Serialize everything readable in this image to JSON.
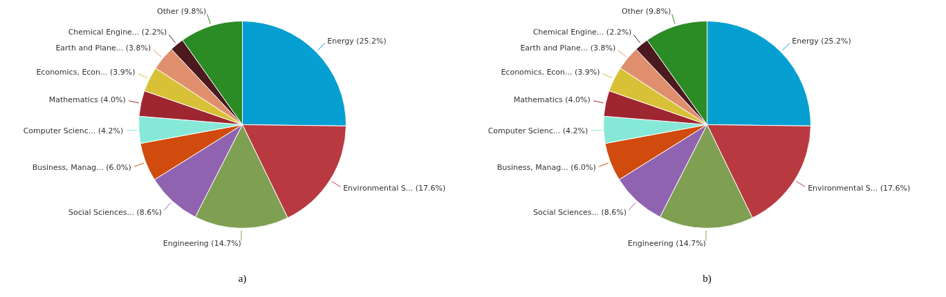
{
  "chart_data": [
    {
      "type": "pie",
      "title": "a)",
      "categories": [
        "Energy",
        "Environmental S...",
        "Engineering",
        "Social Sciences...",
        "Business, Manag...",
        "Computer Scienc...",
        "Mathematics",
        "Economics, Econ...",
        "Earth and Plane...",
        "Chemical Engine...",
        "Other"
      ],
      "values": [
        25.2,
        17.6,
        14.7,
        8.6,
        6.0,
        4.2,
        4.0,
        3.9,
        3.8,
        2.2,
        9.8
      ],
      "value_labels": [
        "(25.2%)",
        "(17.6%)",
        "(14.7%)",
        "(8.6%)",
        "(6.0%)",
        "(4.2%)",
        "(4.0%)",
        "(3.9%)",
        "(3.8%)",
        "(2.2%)",
        "(9.8%)"
      ],
      "colors": [
        "#069fd1",
        "#b83a40",
        "#7f9f53",
        "#9063b0",
        "#d04b0d",
        "#86e8d6",
        "#9e2631",
        "#d8c136",
        "#e08f6e",
        "#4b1a1f",
        "#2b8b25"
      ]
    },
    {
      "type": "pie",
      "title": "b)",
      "categories": [
        "Energy",
        "Environmental S...",
        "Engineering",
        "Social Sciences...",
        "Business, Manag...",
        "Computer Scienc...",
        "Mathematics",
        "Economics, Econ...",
        "Earth and Plane...",
        "Chemical Engine...",
        "Other"
      ],
      "values": [
        25.2,
        17.6,
        14.7,
        8.6,
        6.0,
        4.2,
        4.0,
        3.9,
        3.8,
        2.2,
        9.8
      ],
      "value_labels": [
        "(25.2%)",
        "(17.6%)",
        "(14.7%)",
        "(8.6%)",
        "(6.0%)",
        "(4.2%)",
        "(4.0%)",
        "(3.9%)",
        "(3.8%)",
        "(2.2%)",
        "(9.8%)"
      ],
      "colors": [
        "#069fd1",
        "#b83a40",
        "#7f9f53",
        "#9063b0",
        "#d04b0d",
        "#86e8d6",
        "#9e2631",
        "#d8c136",
        "#e08f6e",
        "#4b1a1f",
        "#2b8b25"
      ]
    }
  ]
}
